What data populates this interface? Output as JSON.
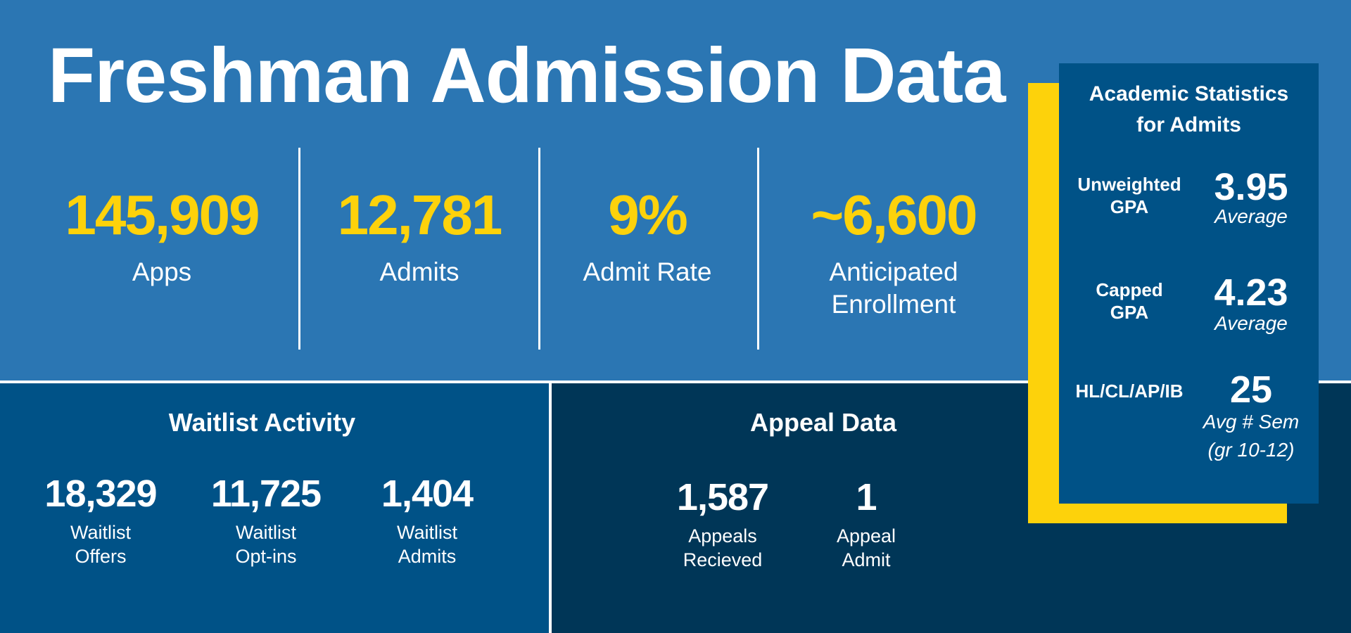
{
  "title": "Freshman Admission Data",
  "headline_stats": [
    {
      "value": "145,909",
      "label": "Apps"
    },
    {
      "value": "12,781",
      "label": "Admits"
    },
    {
      "value": "9%",
      "label": "Admit Rate"
    },
    {
      "value": "~6,600",
      "label": "Anticipated Enrollment"
    }
  ],
  "waitlist": {
    "title": "Waitlist Activity",
    "stats": [
      {
        "value": "18,329",
        "label_line1": "Waitlist",
        "label_line2": "Offers"
      },
      {
        "value": "11,725",
        "label_line1": "Waitlist",
        "label_line2": "Opt-ins"
      },
      {
        "value": "1,404",
        "label_line1": "Waitlist",
        "label_line2": "Admits"
      }
    ]
  },
  "appeal": {
    "title": "Appeal Data",
    "stats": [
      {
        "value": "1,587",
        "label_line1": "Appeals",
        "label_line2": "Recieved"
      },
      {
        "value": "1",
        "label_line1": "Appeal",
        "label_line2": "Admit"
      }
    ]
  },
  "academic": {
    "title_line1": "Academic Statistics",
    "title_line2": "for Admits",
    "rows": [
      {
        "label_line1": "Unweighted",
        "label_line2": "GPA",
        "value": "3.95",
        "sub_line1": "Average",
        "sub_line2": ""
      },
      {
        "label_line1": "Capped",
        "label_line2": "GPA",
        "value": "4.23",
        "sub_line1": "Average",
        "sub_line2": ""
      },
      {
        "label_line1": "HL/CL/AP/IB",
        "label_line2": "",
        "value": "25",
        "sub_line1": "Avg # Sem",
        "sub_line2": "(gr 10-12)"
      }
    ]
  },
  "colors": {
    "top_bg": "#2b76b3",
    "waitlist_bg": "#005287",
    "appeal_bg": "#003657",
    "accent_yellow": "#fdd20b",
    "text": "#ffffff"
  }
}
